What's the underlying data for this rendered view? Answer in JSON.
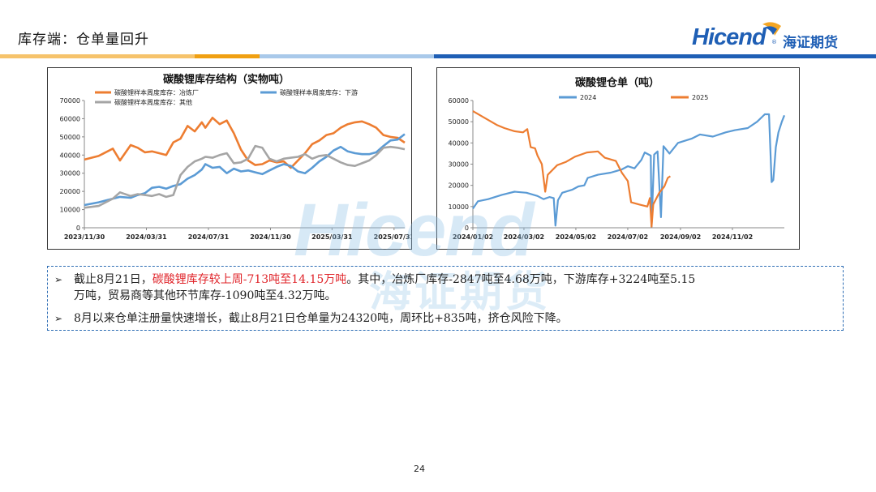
{
  "page": {
    "title": "库存端：仓单量回升",
    "page_number": "24"
  },
  "brand": {
    "logo_text": "Hicend",
    "logo_cn": "海证期货",
    "reg_mark": "®",
    "watermark_text": "Hicend",
    "watermark_cn": "海证期货"
  },
  "colors": {
    "orange": "#ed7d31",
    "blue": "#5b9bd5",
    "gray": "#a5a5a5",
    "red_text": "#e0242a",
    "brand_blue": "#1f5fb5"
  },
  "notes": {
    "b1_pre": "截止8月21日，",
    "b1_red": "碳酸锂库存较上周-713吨至14.15万吨",
    "b1_post": "。其中，冶炼厂库存-2847吨至4.68万吨，下游库存+3224吨至5.15",
    "b1_line2": "万吨，贸易商等其他环节库存-1090吨至4.32万吨。",
    "b2": "8月以来仓单注册量快速增长，截止8月21日仓单量为24320吨，周环比+835吨，挤仓风险下降。",
    "bullet_glyph": "➢"
  },
  "chart_data": [
    {
      "type": "line",
      "title": "碳酸锂库存结构（实物吨）",
      "ylim": [
        0,
        70000
      ],
      "yticks": [
        "0",
        "10000",
        "20000",
        "30000",
        "40000",
        "50000",
        "60000",
        "70000"
      ],
      "xticks": [
        "2023/11/30",
        "2024/03/31",
        "2024/07/31",
        "2024/11/30",
        "2025/03/31",
        "2025/07/31"
      ],
      "x_range": [
        "2023-11-30",
        "2025-08-21"
      ],
      "legend_position": "top",
      "series": [
        {
          "name": "碳酸锂样本周度库存：冶炼厂",
          "color": "#ed7d31",
          "points": [
            [
              "2023-11-30",
              37500
            ],
            [
              "2023-12-28",
              39500
            ],
            [
              "2024-01-25",
              43500
            ],
            [
              "2024-02-08",
              37000
            ],
            [
              "2024-02-29",
              45500
            ],
            [
              "2024-03-14",
              44000
            ],
            [
              "2024-03-28",
              41500
            ],
            [
              "2024-04-11",
              42000
            ],
            [
              "2024-04-25",
              41000
            ],
            [
              "2024-05-09",
              40000
            ],
            [
              "2024-05-23",
              47000
            ],
            [
              "2024-06-06",
              49000
            ],
            [
              "2024-06-20",
              56000
            ],
            [
              "2024-07-04",
              53000
            ],
            [
              "2024-07-18",
              58000
            ],
            [
              "2024-07-25",
              55000
            ],
            [
              "2024-08-08",
              60500
            ],
            [
              "2024-08-22",
              57000
            ],
            [
              "2024-09-05",
              59000
            ],
            [
              "2024-09-19",
              52000
            ],
            [
              "2024-10-03",
              43000
            ],
            [
              "2024-10-17",
              37000
            ],
            [
              "2024-10-31",
              34500
            ],
            [
              "2024-11-14",
              35000
            ],
            [
              "2024-11-28",
              37000
            ],
            [
              "2024-12-12",
              36000
            ],
            [
              "2024-12-26",
              36500
            ],
            [
              "2025-01-09",
              33000
            ],
            [
              "2025-01-23",
              37000
            ],
            [
              "2025-02-06",
              41000
            ],
            [
              "2025-02-20",
              46000
            ],
            [
              "2025-03-06",
              48000
            ],
            [
              "2025-03-20",
              51000
            ],
            [
              "2025-04-03",
              52000
            ],
            [
              "2025-04-17",
              55000
            ],
            [
              "2025-05-01",
              57000
            ],
            [
              "2025-05-15",
              58000
            ],
            [
              "2025-05-29",
              58500
            ],
            [
              "2025-06-12",
              57000
            ],
            [
              "2025-06-26",
              55000
            ],
            [
              "2025-07-10",
              51000
            ],
            [
              "2025-07-24",
              50000
            ],
            [
              "2025-08-07",
              49500
            ],
            [
              "2025-08-21",
              46800
            ]
          ]
        },
        {
          "name": "碳酸锂样本周度库存：下游",
          "color": "#5b9bd5",
          "points": [
            [
              "2023-11-30",
              12500
            ],
            [
              "2023-12-28",
              14000
            ],
            [
              "2024-01-25",
              16000
            ],
            [
              "2024-02-08",
              17000
            ],
            [
              "2024-02-29",
              16500
            ],
            [
              "2024-03-14",
              18000
            ],
            [
              "2024-03-28",
              19000
            ],
            [
              "2024-04-11",
              22000
            ],
            [
              "2024-04-25",
              22500
            ],
            [
              "2024-05-09",
              21500
            ],
            [
              "2024-05-23",
              23000
            ],
            [
              "2024-06-06",
              24000
            ],
            [
              "2024-06-20",
              27000
            ],
            [
              "2024-07-04",
              29000
            ],
            [
              "2024-07-18",
              32000
            ],
            [
              "2024-07-25",
              35000
            ],
            [
              "2024-08-08",
              33000
            ],
            [
              "2024-08-22",
              33500
            ],
            [
              "2024-09-05",
              30000
            ],
            [
              "2024-09-19",
              32500
            ],
            [
              "2024-10-03",
              31000
            ],
            [
              "2024-10-17",
              31500
            ],
            [
              "2024-10-31",
              30500
            ],
            [
              "2024-11-14",
              29500
            ],
            [
              "2024-11-28",
              31500
            ],
            [
              "2024-12-12",
              33500
            ],
            [
              "2024-12-26",
              35000
            ],
            [
              "2025-01-09",
              34000
            ],
            [
              "2025-01-23",
              31000
            ],
            [
              "2025-02-06",
              30000
            ],
            [
              "2025-02-20",
              33000
            ],
            [
              "2025-03-06",
              36500
            ],
            [
              "2025-03-20",
              39000
            ],
            [
              "2025-04-03",
              42500
            ],
            [
              "2025-04-17",
              44500
            ],
            [
              "2025-05-01",
              42000
            ],
            [
              "2025-05-15",
              41000
            ],
            [
              "2025-05-29",
              40500
            ],
            [
              "2025-06-12",
              40500
            ],
            [
              "2025-06-26",
              41500
            ],
            [
              "2025-07-10",
              45000
            ],
            [
              "2025-07-24",
              48000
            ],
            [
              "2025-08-07",
              48500
            ],
            [
              "2025-08-21",
              51500
            ]
          ]
        },
        {
          "name": "碳酸锂样本周度库存：其他",
          "color": "#a5a5a5",
          "points": [
            [
              "2023-11-30",
              11000
            ],
            [
              "2023-12-28",
              12000
            ],
            [
              "2024-01-25",
              16000
            ],
            [
              "2024-02-08",
              19500
            ],
            [
              "2024-02-29",
              17500
            ],
            [
              "2024-03-14",
              18500
            ],
            [
              "2024-03-28",
              18000
            ],
            [
              "2024-04-11",
              17500
            ],
            [
              "2024-04-25",
              18500
            ],
            [
              "2024-05-09",
              17000
            ],
            [
              "2024-05-23",
              18000
            ],
            [
              "2024-06-06",
              29000
            ],
            [
              "2024-06-20",
              33500
            ],
            [
              "2024-07-04",
              36500
            ],
            [
              "2024-07-18",
              38000
            ],
            [
              "2024-07-25",
              39000
            ],
            [
              "2024-08-08",
              38500
            ],
            [
              "2024-08-22",
              40000
            ],
            [
              "2024-09-05",
              41000
            ],
            [
              "2024-09-19",
              35500
            ],
            [
              "2024-10-03",
              36000
            ],
            [
              "2024-10-17",
              38000
            ],
            [
              "2024-10-31",
              45000
            ],
            [
              "2024-11-14",
              44000
            ],
            [
              "2024-11-28",
              38000
            ],
            [
              "2024-12-12",
              36500
            ],
            [
              "2024-12-26",
              38000
            ],
            [
              "2025-01-09",
              38500
            ],
            [
              "2025-01-23",
              39000
            ],
            [
              "2025-02-06",
              40500
            ],
            [
              "2025-02-20",
              38000
            ],
            [
              "2025-03-06",
              39500
            ],
            [
              "2025-03-20",
              40000
            ],
            [
              "2025-04-03",
              38000
            ],
            [
              "2025-04-17",
              36000
            ],
            [
              "2025-05-01",
              34500
            ],
            [
              "2025-05-15",
              34000
            ],
            [
              "2025-05-29",
              35500
            ],
            [
              "2025-06-12",
              37000
            ],
            [
              "2025-06-26",
              40000
            ],
            [
              "2025-07-10",
              44000
            ],
            [
              "2025-07-24",
              44500
            ],
            [
              "2025-08-07",
              44000
            ],
            [
              "2025-08-21",
              43200
            ]
          ]
        }
      ]
    },
    {
      "type": "line",
      "title": "碳酸锂仓单（吨）",
      "ylim": [
        0,
        60000
      ],
      "yticks": [
        "0",
        "10000",
        "20000",
        "30000",
        "40000",
        "50000",
        "60000"
      ],
      "xticks": [
        "2024/01/02",
        "2024/03/02",
        "2024/05/02",
        "2024/07/02",
        "2024/09/02",
        "2024/11/02"
      ],
      "x_range": [
        "2024-01-02",
        "2025-01-02"
      ],
      "legend_position": "top",
      "series": [
        {
          "name": "2024",
          "color": "#5b9bd5",
          "points": [
            [
              "2024-01-02",
              9000
            ],
            [
              "2024-01-08",
              12500
            ],
            [
              "2024-01-20",
              13500
            ],
            [
              "2024-02-05",
              15500
            ],
            [
              "2024-02-20",
              17000
            ],
            [
              "2024-03-05",
              16500
            ],
            [
              "2024-03-18",
              15000
            ],
            [
              "2024-03-25",
              13500
            ],
            [
              "2024-04-01",
              14500
            ],
            [
              "2024-04-06",
              14000
            ],
            [
              "2024-04-08",
              1000
            ],
            [
              "2024-04-11",
              13000
            ],
            [
              "2024-04-16",
              16500
            ],
            [
              "2024-04-28",
              18000
            ],
            [
              "2024-05-05",
              19500
            ],
            [
              "2024-05-12",
              20000
            ],
            [
              "2024-05-16",
              23500
            ],
            [
              "2024-05-28",
              25000
            ],
            [
              "2024-06-12",
              26000
            ],
            [
              "2024-06-25",
              27500
            ],
            [
              "2024-07-02",
              29000
            ],
            [
              "2024-07-10",
              28000
            ],
            [
              "2024-07-18",
              32000
            ],
            [
              "2024-07-22",
              35500
            ],
            [
              "2024-07-29",
              34000
            ],
            [
              "2024-07-30",
              500
            ],
            [
              "2024-08-02",
              34500
            ],
            [
              "2024-08-06",
              36000
            ],
            [
              "2024-08-10",
              5000
            ],
            [
              "2024-08-13",
              38500
            ],
            [
              "2024-08-20",
              35000
            ],
            [
              "2024-08-30",
              40000
            ],
            [
              "2024-09-15",
              42000
            ],
            [
              "2024-09-25",
              44000
            ],
            [
              "2024-10-10",
              43000
            ],
            [
              "2024-10-25",
              45000
            ],
            [
              "2024-11-05",
              46000
            ],
            [
              "2024-11-20",
              47000
            ],
            [
              "2024-12-01",
              50000
            ],
            [
              "2024-12-10",
              53500
            ],
            [
              "2024-12-15",
              53500
            ],
            [
              "2024-12-18",
              21500
            ],
            [
              "2024-12-20",
              22500
            ],
            [
              "2024-12-23",
              38000
            ],
            [
              "2024-12-26",
              45000
            ],
            [
              "2024-12-30",
              50000
            ],
            [
              "2025-01-02",
              53000
            ]
          ]
        },
        {
          "name": "2025",
          "color": "#ed7d31",
          "points": [
            [
              "2024-01-02",
              55000
            ],
            [
              "2024-01-15",
              52000
            ],
            [
              "2024-01-30",
              48500
            ],
            [
              "2024-02-08",
              47000
            ],
            [
              "2024-02-20",
              45500
            ],
            [
              "2024-03-01",
              45000
            ],
            [
              "2024-03-06",
              46500
            ],
            [
              "2024-03-10",
              38000
            ],
            [
              "2024-03-15",
              37500
            ],
            [
              "2024-03-18",
              34000
            ],
            [
              "2024-03-23",
              30000
            ],
            [
              "2024-03-27",
              17000
            ],
            [
              "2024-03-30",
              25000
            ],
            [
              "2024-04-10",
              29500
            ],
            [
              "2024-04-20",
              31000
            ],
            [
              "2024-05-01",
              33500
            ],
            [
              "2024-05-15",
              35500
            ],
            [
              "2024-05-28",
              36000
            ],
            [
              "2024-06-05",
              33000
            ],
            [
              "2024-06-18",
              31500
            ],
            [
              "2024-06-25",
              26000
            ],
            [
              "2024-07-02",
              22000
            ],
            [
              "2024-07-06",
              12000
            ],
            [
              "2024-07-15",
              11000
            ],
            [
              "2024-07-25",
              10000
            ],
            [
              "2024-07-28",
              14000
            ],
            [
              "2024-07-30",
              500
            ],
            [
              "2024-08-01",
              11000
            ],
            [
              "2024-08-08",
              16500
            ],
            [
              "2024-08-14",
              19500
            ],
            [
              "2024-08-18",
              23500
            ],
            [
              "2024-08-21",
              24320
            ]
          ]
        }
      ]
    }
  ]
}
